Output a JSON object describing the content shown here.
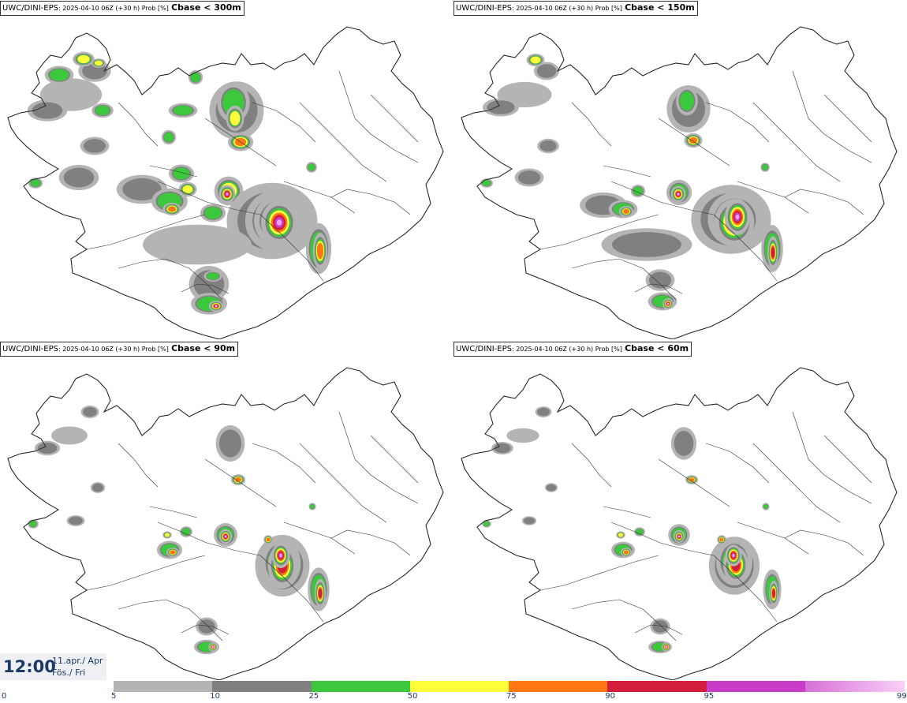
{
  "panels": [
    {
      "model": "UWC/DINI-EPS",
      "meta": ": 2025-04-10 06Z (+30 h) Prob [%]",
      "threshold": "Cbase < 300m"
    },
    {
      "model": "UWC/DINI-EPS",
      "meta": ": 2025-04-10 06Z (+30 h) Prob [%]",
      "threshold": "Cbase < 150m"
    },
    {
      "model": "UWC/DINI-EPS",
      "meta": ": 2025-04-10 06Z (+30 h) Prob [%]",
      "threshold": "Cbase < 90m"
    },
    {
      "model": "UWC/DINI-EPS",
      "meta": ": 2025-04-10 06Z (+30 h) Prob [%]",
      "threshold": "Cbase < 60m"
    }
  ],
  "time": {
    "hour": "12:00",
    "date": "11.apr./ Apr",
    "day": "Fös./ Fri"
  },
  "legend": {
    "ticks": [
      "0",
      "5",
      "10",
      "25",
      "50",
      "75",
      "90",
      "95",
      "99"
    ],
    "colors": [
      "#b4b4b4",
      "#808080",
      "#3cc83c",
      "#ffff3c",
      "#ff7814",
      "#d21e3c",
      "#c83cc8",
      "#f0a0f0"
    ]
  },
  "colors": {
    "land_outline": "#555555",
    "p5": "#b4b4b4",
    "p10": "#808080",
    "p25": "#3cc83c",
    "p50": "#ffff3c",
    "p75": "#ff7814",
    "p90": "#d21e3c",
    "p95": "#c83cc8",
    "p99": "#f0a0f0"
  }
}
